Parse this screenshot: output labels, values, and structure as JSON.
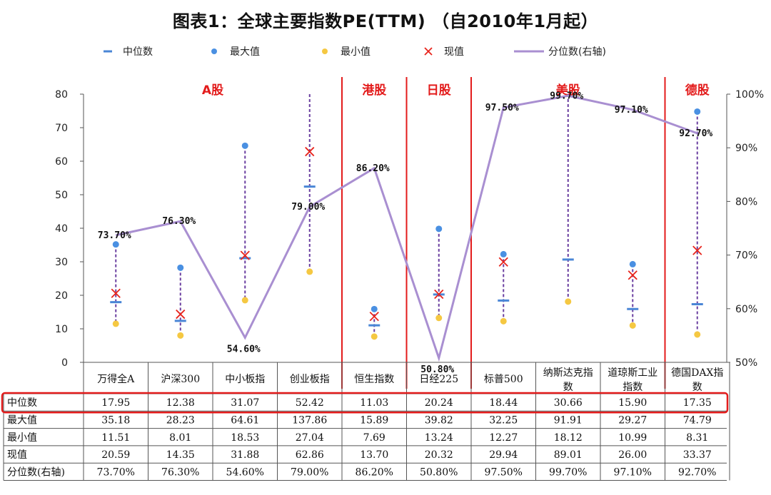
{
  "chart_data": {
    "type": "composite",
    "title": "图表1：全球主要指数PE(TTM) （自2010年1月起）",
    "y_left": {
      "min": 0,
      "max": 80,
      "ticks": [
        "0",
        "10",
        "20",
        "30",
        "40",
        "50",
        "60",
        "70",
        "80"
      ]
    },
    "y_right": {
      "min": 50,
      "max": 100,
      "ticks": [
        "50%",
        "60%",
        "70%",
        "80%",
        "90%",
        "100%"
      ]
    },
    "legend": [
      "中位数",
      "最大值",
      "最小值",
      "现值",
      "分位数(右轴)"
    ],
    "regions": [
      {
        "label": "A股",
        "start": 0,
        "end": 3
      },
      {
        "label": "港股",
        "start": 4,
        "end": 4
      },
      {
        "label": "日股",
        "start": 5,
        "end": 5
      },
      {
        "label": "美股",
        "start": 6,
        "end": 8
      },
      {
        "label": "德股",
        "start": 9,
        "end": 9
      }
    ],
    "categories": [
      "万得全A",
      "沪深300",
      "中小板指",
      "创业板指",
      "恒生指数",
      "日经225",
      "标普500",
      "纳斯达克指数",
      "道琼斯工业指数",
      "德国DAX指数"
    ],
    "category_lines": [
      [
        "万得全A"
      ],
      [
        "沪深300"
      ],
      [
        "中小板指"
      ],
      [
        "创业板指"
      ],
      [
        "恒生指数"
      ],
      [
        "日经225"
      ],
      [
        "标普500"
      ],
      [
        "纳斯达克指",
        "数"
      ],
      [
        "道琼斯工业",
        "指数"
      ],
      [
        "德国DAX指",
        "数"
      ]
    ],
    "rows": [
      {
        "label": "中位数",
        "display": [
          "17.95",
          "12.38",
          "31.07",
          "52.42",
          "11.03",
          "20.24",
          "18.44",
          "30.66",
          "15.90",
          "17.35"
        ]
      },
      {
        "label": "最大值",
        "display": [
          "35.18",
          "28.23",
          "64.61",
          "137.86",
          "15.89",
          "39.82",
          "32.25",
          "91.91",
          "29.27",
          "74.79"
        ]
      },
      {
        "label": "最小值",
        "display": [
          "11.51",
          "8.01",
          "18.53",
          "27.04",
          "7.69",
          "13.24",
          "12.27",
          "18.12",
          "10.99",
          "8.31"
        ]
      },
      {
        "label": "现值",
        "display": [
          "20.59",
          "14.35",
          "31.88",
          "62.86",
          "13.70",
          "20.32",
          "29.94",
          "89.01",
          "26.00",
          "33.37"
        ]
      },
      {
        "label": "分位数(右轴)",
        "display": [
          "73.70%",
          "76.30%",
          "54.60%",
          "79.00%",
          "86.20%",
          "50.80%",
          "97.50%",
          "99.70%",
          "97.10%",
          "92.70%"
        ]
      }
    ],
    "series": [
      {
        "name": "中位数",
        "values": [
          17.95,
          12.38,
          31.07,
          52.42,
          11.03,
          20.24,
          18.44,
          30.66,
          15.9,
          17.35
        ]
      },
      {
        "name": "最大值",
        "values": [
          35.18,
          28.23,
          64.61,
          137.86,
          15.89,
          39.82,
          32.25,
          91.91,
          29.27,
          74.79
        ]
      },
      {
        "name": "最小值",
        "values": [
          11.51,
          8.01,
          18.53,
          27.04,
          7.69,
          13.24,
          12.27,
          18.12,
          10.99,
          8.31
        ]
      },
      {
        "name": "现值",
        "values": [
          20.59,
          14.35,
          31.88,
          62.86,
          13.7,
          20.32,
          29.94,
          89.01,
          26.0,
          33.37
        ]
      },
      {
        "name": "分位数(右轴)",
        "axis": "right",
        "values": [
          73.7,
          76.3,
          54.6,
          79.0,
          86.2,
          50.8,
          97.5,
          99.7,
          97.1,
          92.7
        ]
      }
    ],
    "colors": {
      "median": "#4a86d6",
      "max": "#4a90e2",
      "min": "#f5c842",
      "current": "#e8241c",
      "percentile": "#a98fd1",
      "region": "#e31b1b",
      "dash": "#6a3fa0",
      "highlight": "#e31b1b"
    },
    "highlighted_row": "中位数"
  }
}
